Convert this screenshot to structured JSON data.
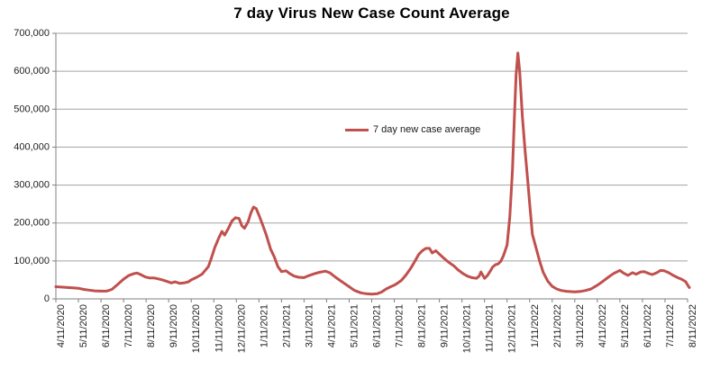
{
  "title": "7 day Virus New Case Count Average",
  "legend": {
    "label": "7 day new case average"
  },
  "colors": {
    "line": "#C0504D",
    "grid": "#A3A3A3",
    "axis": "#808080",
    "tick_text": "#1f1f1f",
    "title_text": "#000000",
    "background": "#FFFFFF"
  },
  "chart_data": {
    "type": "line",
    "title": "7 day Virus New Case Count Average",
    "series_name": "7 day new case average",
    "xlabel": "",
    "ylabel": "",
    "ylim": [
      0,
      700000
    ],
    "grid": true,
    "legend_position": "center",
    "y_ticks": [
      "0",
      "100,000",
      "200,000",
      "300,000",
      "400,000",
      "500,000",
      "600,000",
      "700,000"
    ],
    "x_ticks": [
      "4/11/2020",
      "5/11/2020",
      "6/11/2020",
      "7/11/2020",
      "8/11/2020",
      "9/11/2020",
      "10/11/2020",
      "11/11/2020",
      "12/11/2020",
      "1/11/2021",
      "2/11/2021",
      "3/11/2021",
      "4/11/2021",
      "5/11/2021",
      "6/11/2021",
      "7/11/2021",
      "8/11/2021",
      "9/11/2021",
      "10/11/2021",
      "11/11/2021",
      "12/11/2021",
      "1/11/2022",
      "2/11/2022",
      "3/11/2022",
      "4/11/2022",
      "5/11/2022",
      "6/11/2022",
      "7/11/2022",
      "8/11/2022"
    ],
    "x_unit": "months_after_first_tick",
    "points": [
      [
        0,
        32000
      ],
      [
        0.24,
        31000
      ],
      [
        0.52,
        30000
      ],
      [
        0.76,
        29000
      ],
      [
        1,
        28000
      ],
      [
        1.24,
        25000
      ],
      [
        1.48,
        23000
      ],
      [
        1.72,
        21000
      ],
      [
        2,
        20500
      ],
      [
        2.24,
        20500
      ],
      [
        2.48,
        25000
      ],
      [
        2.72,
        37000
      ],
      [
        3,
        52000
      ],
      [
        3.24,
        62000
      ],
      [
        3.48,
        67000
      ],
      [
        3.6,
        68000
      ],
      [
        3.76,
        64000
      ],
      [
        3.96,
        58000
      ],
      [
        4.16,
        55000
      ],
      [
        4.36,
        55000
      ],
      [
        4.52,
        53000
      ],
      [
        4.72,
        50000
      ],
      [
        4.92,
        46000
      ],
      [
        5.12,
        42000
      ],
      [
        5.28,
        45000
      ],
      [
        5.48,
        41000
      ],
      [
        5.68,
        42000
      ],
      [
        5.88,
        45000
      ],
      [
        6,
        50000
      ],
      [
        6.24,
        57000
      ],
      [
        6.48,
        65000
      ],
      [
        6.76,
        85000
      ],
      [
        6.88,
        105000
      ],
      [
        7.04,
        135000
      ],
      [
        7.2,
        158000
      ],
      [
        7.36,
        178000
      ],
      [
        7.48,
        168000
      ],
      [
        7.64,
        185000
      ],
      [
        7.8,
        205000
      ],
      [
        7.96,
        214000
      ],
      [
        8.12,
        212000
      ],
      [
        8.24,
        193000
      ],
      [
        8.36,
        186000
      ],
      [
        8.52,
        203000
      ],
      [
        8.64,
        226000
      ],
      [
        8.76,
        242000
      ],
      [
        8.88,
        238000
      ],
      [
        9,
        221000
      ],
      [
        9.16,
        196000
      ],
      [
        9.32,
        170000
      ],
      [
        9.52,
        131000
      ],
      [
        9.68,
        111000
      ],
      [
        9.84,
        85000
      ],
      [
        10,
        72000
      ],
      [
        10.2,
        74000
      ],
      [
        10.36,
        67000
      ],
      [
        10.56,
        60000
      ],
      [
        10.76,
        57000
      ],
      [
        11,
        56000
      ],
      [
        11.2,
        61000
      ],
      [
        11.44,
        66000
      ],
      [
        11.68,
        70000
      ],
      [
        11.96,
        73000
      ],
      [
        12.16,
        68000
      ],
      [
        12.4,
        57000
      ],
      [
        12.68,
        45000
      ],
      [
        13,
        32000
      ],
      [
        13.24,
        22000
      ],
      [
        13.52,
        16000
      ],
      [
        13.76,
        13500
      ],
      [
        14,
        12500
      ],
      [
        14.24,
        13500
      ],
      [
        14.44,
        18000
      ],
      [
        14.64,
        26000
      ],
      [
        14.84,
        32000
      ],
      [
        15,
        36000
      ],
      [
        15.16,
        42000
      ],
      [
        15.32,
        49000
      ],
      [
        15.52,
        63000
      ],
      [
        15.72,
        80000
      ],
      [
        15.92,
        100000
      ],
      [
        16.08,
        117000
      ],
      [
        16.24,
        127000
      ],
      [
        16.4,
        133000
      ],
      [
        16.56,
        133000
      ],
      [
        16.68,
        121000
      ],
      [
        16.84,
        127000
      ],
      [
        17,
        118000
      ],
      [
        17.2,
        107000
      ],
      [
        17.4,
        97000
      ],
      [
        17.64,
        87000
      ],
      [
        17.84,
        76000
      ],
      [
        18.04,
        67000
      ],
      [
        18.24,
        60000
      ],
      [
        18.44,
        56000
      ],
      [
        18.64,
        54000
      ],
      [
        18.76,
        60000
      ],
      [
        18.84,
        71000
      ],
      [
        19,
        54000
      ],
      [
        19.12,
        61000
      ],
      [
        19.24,
        72000
      ],
      [
        19.36,
        84000
      ],
      [
        19.48,
        90000
      ],
      [
        19.6,
        92000
      ],
      [
        19.72,
        99000
      ],
      [
        19.84,
        114000
      ],
      [
        20,
        142000
      ],
      [
        20.12,
        215000
      ],
      [
        20.24,
        340000
      ],
      [
        20.32,
        470000
      ],
      [
        20.4,
        590000
      ],
      [
        20.48,
        648000
      ],
      [
        20.56,
        600000
      ],
      [
        20.68,
        480000
      ],
      [
        20.8,
        390000
      ],
      [
        20.92,
        310000
      ],
      [
        21,
        250000
      ],
      [
        21.12,
        170000
      ],
      [
        21.28,
        135000
      ],
      [
        21.44,
        100000
      ],
      [
        21.6,
        70000
      ],
      [
        21.8,
        47000
      ],
      [
        22,
        33000
      ],
      [
        22.2,
        26000
      ],
      [
        22.4,
        22000
      ],
      [
        22.64,
        20000
      ],
      [
        23,
        18500
      ],
      [
        23.24,
        19500
      ],
      [
        23.48,
        22000
      ],
      [
        23.72,
        26000
      ],
      [
        24,
        36000
      ],
      [
        24.24,
        46000
      ],
      [
        24.48,
        57000
      ],
      [
        24.72,
        67000
      ],
      [
        25,
        75000
      ],
      [
        25.16,
        68000
      ],
      [
        25.36,
        62000
      ],
      [
        25.56,
        69000
      ],
      [
        25.72,
        65000
      ],
      [
        25.92,
        71000
      ],
      [
        26.08,
        72000
      ],
      [
        26.28,
        67000
      ],
      [
        26.44,
        64000
      ],
      [
        26.64,
        69000
      ],
      [
        26.8,
        75000
      ],
      [
        26.96,
        74000
      ],
      [
        27.16,
        69000
      ],
      [
        27.36,
        62000
      ],
      [
        27.56,
        56000
      ],
      [
        27.76,
        51000
      ],
      [
        27.92,
        45000
      ],
      [
        28.04,
        33000
      ],
      [
        28.08,
        30000
      ]
    ]
  }
}
